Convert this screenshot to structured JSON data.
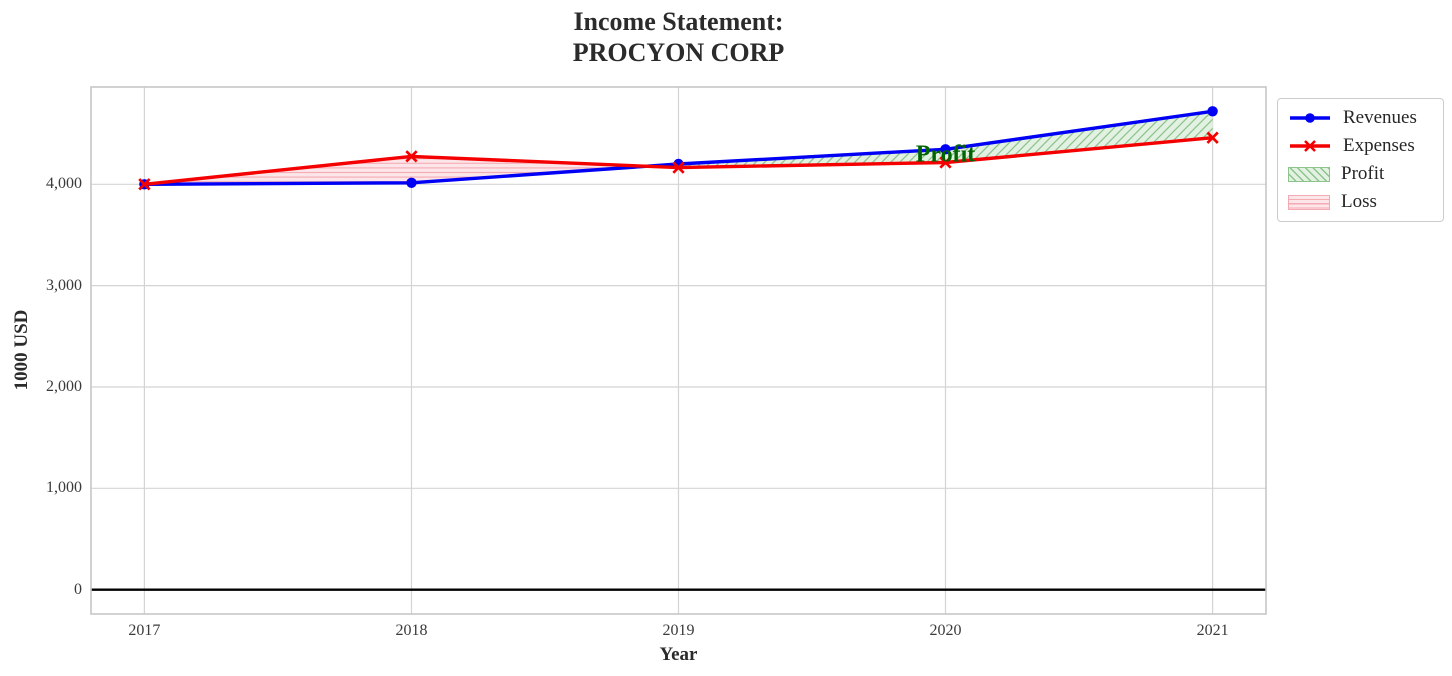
{
  "chart_data": {
    "type": "line",
    "title": "Income Statement:\nPROCYON CORP",
    "title_lines": [
      "Income Statement:",
      "PROCYON CORP"
    ],
    "xlabel": "Year",
    "ylabel": "1000 USD",
    "x": [
      2017,
      2018,
      2019,
      2020,
      2021
    ],
    "xtick_labels": [
      "2017",
      "2018",
      "2019",
      "2020",
      "2021"
    ],
    "yticks": [
      0,
      1000,
      2000,
      3000,
      4000
    ],
    "ytick_labels": [
      "0",
      "1,000",
      "2,000",
      "3,000",
      "4,000"
    ],
    "xlim": [
      2016.8,
      2021.2
    ],
    "ylim": [
      -240,
      4960
    ],
    "grid": true,
    "zero_line": true,
    "series": [
      {
        "name": "Revenues",
        "marker": "circle",
        "color": "#0000f5",
        "values": [
          4000,
          4015,
          4200,
          4345,
          4720
        ]
      },
      {
        "name": "Expenses",
        "marker": "x",
        "color": "#f50000",
        "values": [
          4000,
          4275,
          4165,
          4215,
          4460
        ]
      }
    ],
    "fills": [
      {
        "name": "Profit",
        "rule": "revenues_above_expenses",
        "facecolor": "#e3f1e3",
        "hatch": "diagonal",
        "hatchcolor": "#8cc48c"
      },
      {
        "name": "Loss",
        "rule": "expenses_above_revenues",
        "facecolor": "#fde6ea",
        "hatch": "horizontal",
        "hatchcolor": "#f3aab2"
      }
    ],
    "annotation": {
      "text": "Profit",
      "x": 2020,
      "y": 4290,
      "color": "#006400"
    },
    "legend": {
      "position": "outside-upper-right",
      "items": [
        "Revenues",
        "Expenses",
        "Profit",
        "Loss"
      ]
    }
  }
}
